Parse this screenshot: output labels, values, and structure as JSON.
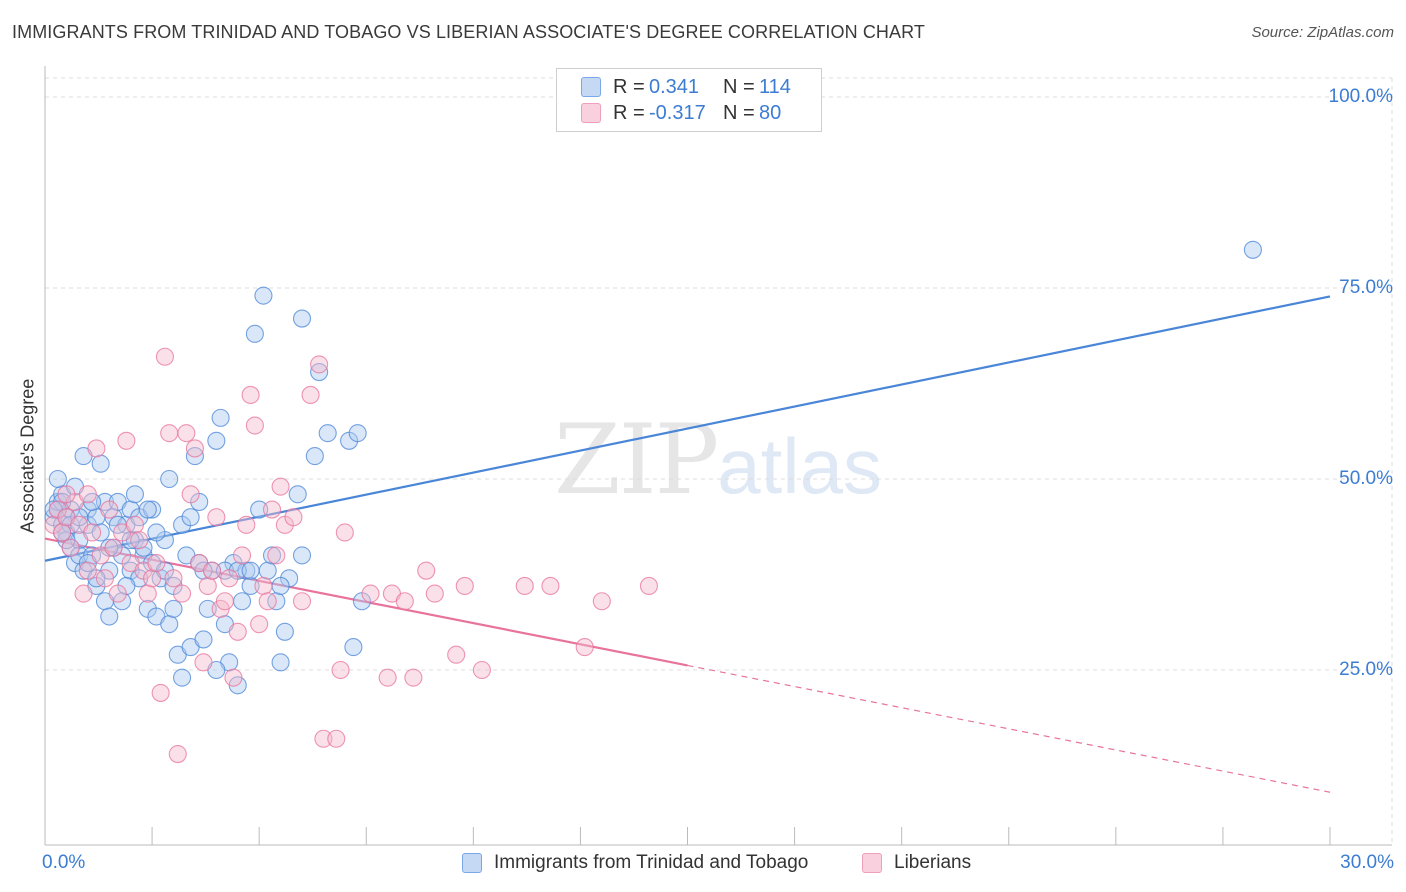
{
  "title": "IMMIGRANTS FROM TRINIDAD AND TOBAGO VS LIBERIAN ASSOCIATE'S DEGREE CORRELATION CHART",
  "source": "Source: ZipAtlas.com",
  "watermark": {
    "zip": "ZIP",
    "atlas": "atlas"
  },
  "legend": {
    "rows": [
      {
        "r_label": "R =",
        "r_value": "0.341",
        "n_label": "N =",
        "n_value": "114",
        "color": "#7aa7e8",
        "fill": "#c5d9f5"
      },
      {
        "r_label": "R =",
        "r_value": "-0.317",
        "n_label": "N =",
        "n_value": "80",
        "color": "#ee9fbb",
        "fill": "#f9d0dd"
      }
    ]
  },
  "bottom_legend": [
    {
      "label": "Immigrants from Trinidad and Tobago",
      "color": "#7aa7e8",
      "fill": "#c5d9f5"
    },
    {
      "label": "Liberians",
      "color": "#ee9fbb",
      "fill": "#f9d0dd"
    }
  ],
  "axes": {
    "x_min_label": "0.0%",
    "x_max_label": "30.0%",
    "y_ticks": [
      "100.0%",
      "75.0%",
      "50.0%",
      "25.0%"
    ],
    "y_label": "Associate's Degree"
  },
  "chart_data": {
    "type": "scatter",
    "title": "IMMIGRANTS FROM TRINIDAD AND TOBAGO VS LIBERIAN ASSOCIATE'S DEGREE CORRELATION CHART",
    "xlabel": "",
    "ylabel": "Associate's Degree",
    "xlim": [
      0,
      30
    ],
    "ylim": [
      0,
      102
    ],
    "grid": true,
    "series": [
      {
        "name": "Immigrants from Trinidad and Tobago",
        "color": "#4a86d8",
        "fill": "#aec9ef",
        "trend": {
          "x": [
            0,
            30
          ],
          "y": [
            39.3,
            73.9
          ],
          "dashed_from": null
        },
        "points": [
          [
            0.2,
            45
          ],
          [
            0.3,
            46
          ],
          [
            0.3,
            47
          ],
          [
            0.4,
            44
          ],
          [
            0.4,
            48
          ],
          [
            0.5,
            45
          ],
          [
            0.5,
            43
          ],
          [
            0.6,
            46
          ],
          [
            0.6,
            41
          ],
          [
            0.7,
            49
          ],
          [
            0.7,
            39
          ],
          [
            0.8,
            42
          ],
          [
            0.8,
            40
          ],
          [
            0.9,
            38
          ],
          [
            1.0,
            46
          ],
          [
            1.0,
            44
          ],
          [
            1.1,
            40
          ],
          [
            1.2,
            45
          ],
          [
            1.2,
            36
          ],
          [
            1.3,
            43
          ],
          [
            1.4,
            47
          ],
          [
            1.4,
            34
          ],
          [
            1.5,
            38
          ],
          [
            1.5,
            32
          ],
          [
            1.6,
            45
          ],
          [
            1.6,
            41
          ],
          [
            1.7,
            47
          ],
          [
            1.8,
            40
          ],
          [
            1.8,
            34
          ],
          [
            1.9,
            44
          ],
          [
            2.0,
            46
          ],
          [
            2.0,
            38
          ],
          [
            2.1,
            42
          ],
          [
            2.2,
            45
          ],
          [
            2.2,
            37
          ],
          [
            2.3,
            40
          ],
          [
            2.4,
            33
          ],
          [
            2.5,
            46
          ],
          [
            2.5,
            39
          ],
          [
            2.6,
            32
          ],
          [
            2.7,
            37
          ],
          [
            2.8,
            42
          ],
          [
            2.9,
            31
          ],
          [
            3.0,
            36
          ],
          [
            3.1,
            27
          ],
          [
            3.2,
            44
          ],
          [
            3.3,
            40
          ],
          [
            3.4,
            28
          ],
          [
            3.5,
            53
          ],
          [
            3.6,
            39
          ],
          [
            3.7,
            29
          ],
          [
            3.8,
            33
          ],
          [
            3.9,
            38
          ],
          [
            4.0,
            55
          ],
          [
            4.1,
            58
          ],
          [
            4.2,
            31
          ],
          [
            4.3,
            26
          ],
          [
            4.4,
            39
          ],
          [
            4.5,
            23
          ],
          [
            4.6,
            34
          ],
          [
            4.7,
            38
          ],
          [
            4.8,
            36
          ],
          [
            4.9,
            69
          ],
          [
            5.0,
            46
          ],
          [
            5.1,
            74
          ],
          [
            5.2,
            38
          ],
          [
            5.3,
            40
          ],
          [
            5.4,
            34
          ],
          [
            5.5,
            26
          ],
          [
            5.6,
            30
          ],
          [
            5.7,
            37
          ],
          [
            5.9,
            48
          ],
          [
            6.0,
            40
          ],
          [
            6.0,
            71
          ],
          [
            6.3,
            53
          ],
          [
            6.4,
            64
          ],
          [
            6.6,
            56
          ],
          [
            7.1,
            55
          ],
          [
            7.2,
            28
          ],
          [
            7.3,
            56
          ],
          [
            7.4,
            34
          ],
          [
            0.3,
            50
          ],
          [
            0.5,
            42
          ],
          [
            0.9,
            53
          ],
          [
            1.1,
            47
          ],
          [
            1.3,
            52
          ],
          [
            1.7,
            44
          ],
          [
            1.9,
            36
          ],
          [
            2.1,
            48
          ],
          [
            2.3,
            41
          ],
          [
            2.6,
            43
          ],
          [
            2.9,
            50
          ],
          [
            3.4,
            45
          ],
          [
            3.7,
            38
          ],
          [
            4.2,
            38
          ],
          [
            4.5,
            38
          ],
          [
            0.4,
            47
          ],
          [
            0.6,
            44
          ],
          [
            0.8,
            45
          ],
          [
            1.0,
            39
          ],
          [
            1.5,
            41
          ],
          [
            2.0,
            42
          ],
          [
            2.4,
            46
          ],
          [
            2.8,
            38
          ],
          [
            3.0,
            33
          ],
          [
            3.2,
            24
          ],
          [
            3.6,
            47
          ],
          [
            4.8,
            38
          ],
          [
            5.5,
            36
          ],
          [
            1.2,
            37
          ],
          [
            0.2,
            46
          ],
          [
            0.4,
            43
          ],
          [
            4.0,
            25
          ],
          [
            28.2,
            80
          ]
        ]
      },
      {
        "name": "Liberians",
        "color": "#e8739c",
        "fill": "#f5bacd",
        "trend": {
          "x": [
            0,
            30
          ],
          "y": [
            42.2,
            9.0
          ],
          "dashed_from": 15
        },
        "points": [
          [
            0.2,
            44
          ],
          [
            0.3,
            46
          ],
          [
            0.4,
            43
          ],
          [
            0.5,
            45
          ],
          [
            0.6,
            41
          ],
          [
            0.7,
            47
          ],
          [
            0.8,
            44
          ],
          [
            0.9,
            35
          ],
          [
            1.0,
            38
          ],
          [
            1.1,
            43
          ],
          [
            1.2,
            54
          ],
          [
            1.3,
            40
          ],
          [
            1.4,
            37
          ],
          [
            1.5,
            46
          ],
          [
            1.6,
            41
          ],
          [
            1.7,
            35
          ],
          [
            1.8,
            43
          ],
          [
            1.9,
            55
          ],
          [
            2.0,
            39
          ],
          [
            2.1,
            44
          ],
          [
            2.2,
            42
          ],
          [
            2.3,
            38
          ],
          [
            2.4,
            35
          ],
          [
            2.5,
            37
          ],
          [
            2.6,
            39
          ],
          [
            2.7,
            22
          ],
          [
            2.8,
            66
          ],
          [
            2.9,
            56
          ],
          [
            3.0,
            37
          ],
          [
            3.1,
            14
          ],
          [
            3.2,
            35
          ],
          [
            3.3,
            56
          ],
          [
            3.4,
            48
          ],
          [
            3.5,
            54
          ],
          [
            3.6,
            39
          ],
          [
            3.7,
            26
          ],
          [
            3.8,
            36
          ],
          [
            3.9,
            38
          ],
          [
            4.0,
            45
          ],
          [
            4.1,
            33
          ],
          [
            4.2,
            34
          ],
          [
            4.3,
            37
          ],
          [
            4.4,
            24
          ],
          [
            4.5,
            30
          ],
          [
            4.6,
            40
          ],
          [
            4.7,
            44
          ],
          [
            4.8,
            61
          ],
          [
            4.9,
            57
          ],
          [
            5.0,
            31
          ],
          [
            5.1,
            36
          ],
          [
            5.2,
            34
          ],
          [
            5.3,
            46
          ],
          [
            5.4,
            40
          ],
          [
            5.5,
            49
          ],
          [
            5.6,
            44
          ],
          [
            5.8,
            45
          ],
          [
            6.0,
            34
          ],
          [
            6.2,
            61
          ],
          [
            6.4,
            65
          ],
          [
            6.5,
            16
          ],
          [
            6.8,
            16
          ],
          [
            6.9,
            25
          ],
          [
            7.0,
            43
          ],
          [
            7.6,
            35
          ],
          [
            8.0,
            24
          ],
          [
            8.1,
            35
          ],
          [
            8.4,
            34
          ],
          [
            8.6,
            24
          ],
          [
            8.9,
            38
          ],
          [
            9.1,
            35
          ],
          [
            9.6,
            27
          ],
          [
            9.8,
            36
          ],
          [
            10.2,
            25
          ],
          [
            11.2,
            36
          ],
          [
            11.8,
            36
          ],
          [
            12.6,
            28
          ],
          [
            13.0,
            34
          ],
          [
            14.1,
            36
          ],
          [
            0.5,
            48
          ],
          [
            1.0,
            48
          ]
        ]
      }
    ]
  }
}
